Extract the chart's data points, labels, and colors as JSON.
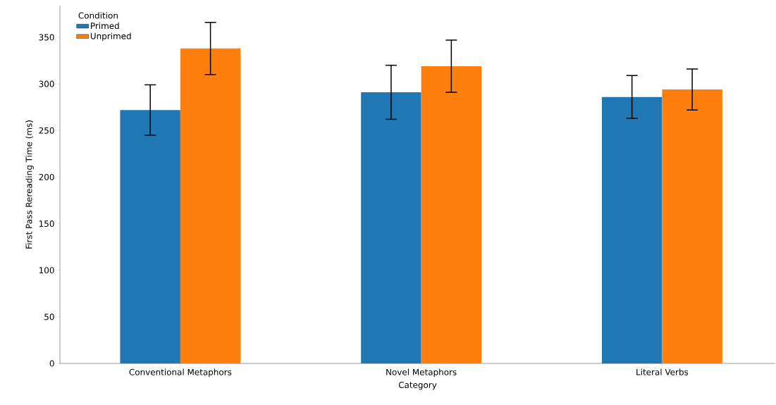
{
  "chart_data": {
    "type": "bar",
    "xlabel": "Category",
    "ylabel": "First Pass Rereading Time (ms)",
    "legend_title": "Condition",
    "categories": [
      "Conventional Metaphors",
      "Novel Metaphors",
      "Literal Verbs"
    ],
    "series": [
      {
        "name": "Primed",
        "color": "#1f77b4",
        "values": [
          272,
          291,
          286
        ],
        "errors": [
          27,
          29,
          23
        ]
      },
      {
        "name": "Unprimed",
        "color": "#ff7f0e",
        "values": [
          338,
          319,
          294
        ],
        "errors": [
          28,
          28,
          22
        ]
      }
    ],
    "ylim": [
      0,
      384
    ],
    "yticks": [
      0,
      50,
      100,
      150,
      200,
      250,
      300,
      350
    ],
    "legend": "top left",
    "grid": false
  }
}
